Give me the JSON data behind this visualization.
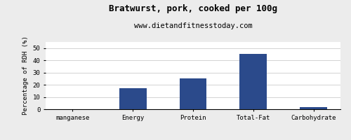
{
  "title": "Bratwurst, pork, cooked per 100g",
  "subtitle": "www.dietandfitnesstoday.com",
  "categories": [
    "manganese",
    "Energy",
    "Protein",
    "Total-Fat",
    "Carbohydrate"
  ],
  "values": [
    0,
    17,
    25,
    45,
    2
  ],
  "bar_color": "#2b4a8b",
  "ylabel": "Percentage of RDH (%)",
  "ylim": [
    0,
    55
  ],
  "yticks": [
    0,
    10,
    20,
    30,
    40,
    50
  ],
  "background_color": "#ececec",
  "plot_bg_color": "#ffffff",
  "title_fontsize": 9,
  "subtitle_fontsize": 7.5,
  "ylabel_fontsize": 6.5,
  "tick_fontsize": 6.5,
  "bar_width": 0.45
}
